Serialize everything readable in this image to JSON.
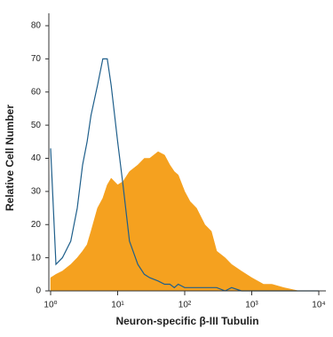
{
  "chart_data": {
    "type": "area",
    "xlabel": "Neuron-specific β-III Tubulin",
    "ylabel": "Relative Cell Number",
    "xscale": "log",
    "xlim": [
      1,
      10000
    ],
    "xticks": [
      {
        "value": 1,
        "label": "10⁰"
      },
      {
        "value": 10,
        "label": "10¹"
      },
      {
        "value": 100,
        "label": "10²"
      },
      {
        "value": 1000,
        "label": "10³"
      },
      {
        "value": 10000,
        "label": "10⁴"
      }
    ],
    "ylim": [
      0,
      80
    ],
    "yticks": [
      0,
      10,
      20,
      30,
      40,
      50,
      60,
      70,
      80
    ],
    "x": [
      1,
      1.2,
      1.5,
      2,
      2.5,
      3,
      3.5,
      4,
      5,
      6,
      7,
      8,
      10,
      12,
      15,
      20,
      25,
      30,
      40,
      50,
      60,
      70,
      80,
      100,
      120,
      150,
      200,
      250,
      300,
      400,
      500,
      700,
      1000,
      1500,
      2000,
      3000,
      5000,
      10000
    ],
    "series": [
      {
        "style": "filled",
        "color": "#f5a11f",
        "values": [
          4,
          5,
          6,
          8,
          10,
          12,
          14,
          18,
          25,
          28,
          32,
          34,
          32,
          33,
          36,
          38,
          40,
          40,
          42,
          41,
          38,
          36,
          35,
          30,
          27,
          25,
          20,
          18,
          12,
          10,
          8,
          6,
          4,
          2,
          2,
          1,
          0,
          0
        ]
      },
      {
        "style": "outline",
        "color": "#1f5f8b",
        "values": [
          43,
          8,
          10,
          15,
          25,
          38,
          45,
          53,
          62,
          70,
          70,
          62,
          45,
          32,
          15,
          8,
          5,
          4,
          3,
          2,
          2,
          1,
          2,
          1,
          1,
          1,
          1,
          1,
          1,
          0,
          1,
          0,
          0,
          0,
          0,
          0,
          0,
          0
        ]
      }
    ]
  }
}
